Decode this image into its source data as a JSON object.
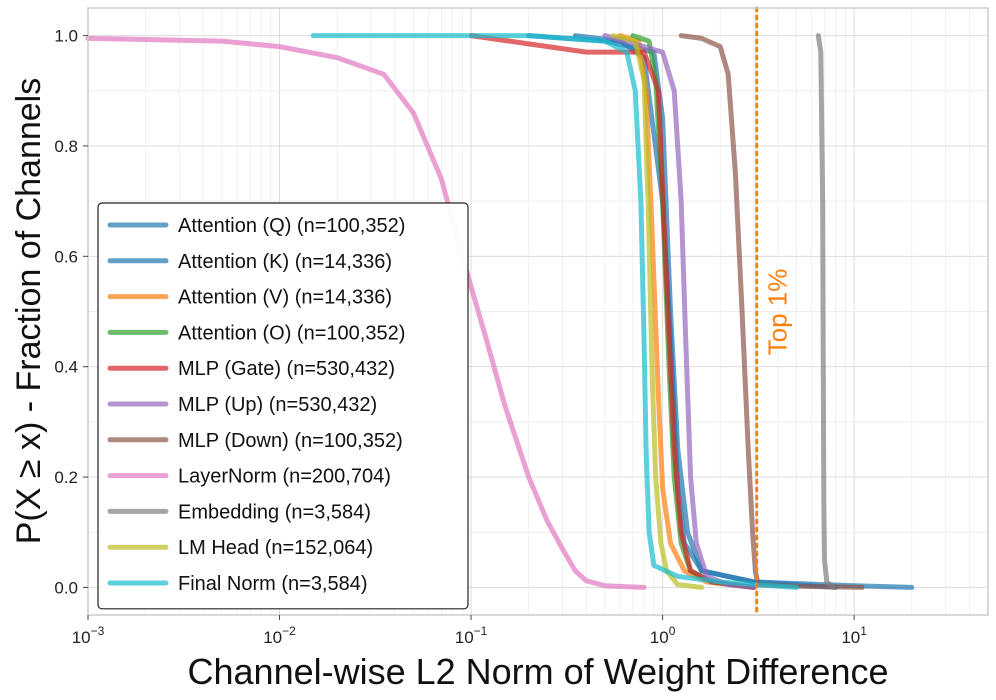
{
  "chart_data": {
    "type": "line",
    "subtype": "complementary-cdf",
    "xscale": "log",
    "xlim": [
      0.001,
      50
    ],
    "ylim": [
      -0.05,
      1.05
    ],
    "x_ticks": [
      {
        "value": 0.001,
        "base": "10",
        "exp": "−3"
      },
      {
        "value": 0.01,
        "base": "10",
        "exp": "−2"
      },
      {
        "value": 0.1,
        "base": "10",
        "exp": "−1"
      },
      {
        "value": 1,
        "base": "10",
        "exp": "0"
      },
      {
        "value": 10,
        "base": "10",
        "exp": "1"
      }
    ],
    "y_ticks": [
      {
        "value": 0.0,
        "label": "0.0"
      },
      {
        "value": 0.2,
        "label": "0.2"
      },
      {
        "value": 0.4,
        "label": "0.4"
      },
      {
        "value": 0.6,
        "label": "0.6"
      },
      {
        "value": 0.8,
        "label": "0.8"
      },
      {
        "value": 1.0,
        "label": "1.0"
      }
    ],
    "xlabel": "Channel-wise L2 Norm of Weight Difference",
    "ylabel": "P(X ≥ x) - Fraction of Channels",
    "grid": true,
    "legend_position": "lower-left",
    "annotation": {
      "text": "Top 1%",
      "x": 3.1,
      "color": "#ff7f0e"
    },
    "series": [
      {
        "name": "Attention (Q) (n=100,352)",
        "color": "#1f77b4",
        "points": [
          [
            0.35,
            1.0
          ],
          [
            0.6,
            0.99
          ],
          [
            0.8,
            0.96
          ],
          [
            1.0,
            0.7
          ],
          [
            1.1,
            0.45
          ],
          [
            1.2,
            0.18
          ],
          [
            1.3,
            0.08
          ],
          [
            1.6,
            0.03
          ],
          [
            3,
            0.01
          ],
          [
            10,
            0.003
          ],
          [
            20,
            0.0
          ]
        ]
      },
      {
        "name": "Attention (K) (n=14,336)",
        "color": "#1f77b4",
        "points": [
          [
            0.2,
            1.0
          ],
          [
            0.5,
            0.99
          ],
          [
            0.9,
            0.97
          ],
          [
            1.0,
            0.85
          ],
          [
            1.1,
            0.5
          ],
          [
            1.2,
            0.25
          ],
          [
            1.35,
            0.1
          ],
          [
            1.6,
            0.03
          ],
          [
            3,
            0.01
          ],
          [
            8,
            0.0
          ]
        ]
      },
      {
        "name": "Attention (V) (n=14,336)",
        "color": "#ff7f0e",
        "points": [
          [
            0.6,
            1.0
          ],
          [
            0.75,
            0.99
          ],
          [
            0.82,
            0.9
          ],
          [
            0.88,
            0.65
          ],
          [
            0.95,
            0.35
          ],
          [
            1.0,
            0.18
          ],
          [
            1.1,
            0.08
          ],
          [
            1.3,
            0.03
          ],
          [
            1.7,
            0.01
          ],
          [
            3,
            0.0
          ]
        ]
      },
      {
        "name": "Attention (O) (n=100,352)",
        "color": "#2ca02c",
        "points": [
          [
            0.7,
            1.0
          ],
          [
            0.85,
            0.99
          ],
          [
            0.92,
            0.92
          ],
          [
            1.0,
            0.7
          ],
          [
            1.08,
            0.4
          ],
          [
            1.15,
            0.2
          ],
          [
            1.25,
            0.08
          ],
          [
            1.4,
            0.03
          ],
          [
            1.8,
            0.01
          ],
          [
            3,
            0.0
          ]
        ]
      },
      {
        "name": "MLP (Gate) (n=530,432)",
        "color": "#d62728",
        "points": [
          [
            0.1,
            1.0
          ],
          [
            0.2,
            0.985
          ],
          [
            0.4,
            0.97
          ],
          [
            0.8,
            0.97
          ],
          [
            0.95,
            0.9
          ],
          [
            1.05,
            0.55
          ],
          [
            1.15,
            0.25
          ],
          [
            1.25,
            0.1
          ],
          [
            1.4,
            0.03
          ],
          [
            1.8,
            0.01
          ],
          [
            3,
            0.0
          ]
        ]
      },
      {
        "name": "MLP (Up) (n=530,432)",
        "color": "#9467bd",
        "points": [
          [
            0.5,
            1.0
          ],
          [
            0.8,
            0.98
          ],
          [
            1.0,
            0.97
          ],
          [
            1.15,
            0.9
          ],
          [
            1.25,
            0.7
          ],
          [
            1.32,
            0.45
          ],
          [
            1.4,
            0.2
          ],
          [
            1.5,
            0.08
          ],
          [
            1.7,
            0.02
          ],
          [
            2.2,
            0.005
          ],
          [
            3,
            0.0
          ]
        ]
      },
      {
        "name": "MLP (Down) (n=100,352)",
        "color": "#8c564b",
        "points": [
          [
            1.25,
            1.0
          ],
          [
            1.6,
            0.995
          ],
          [
            2.0,
            0.98
          ],
          [
            2.2,
            0.93
          ],
          [
            2.4,
            0.75
          ],
          [
            2.6,
            0.5
          ],
          [
            2.8,
            0.25
          ],
          [
            2.95,
            0.1
          ],
          [
            3.05,
            0.03
          ],
          [
            3.15,
            0.005
          ],
          [
            5,
            0.002
          ],
          [
            11,
            0.0
          ]
        ]
      },
      {
        "name": "LayerNorm (n=200,704)",
        "color": "#e377c2",
        "points": [
          [
            0.001,
            0.995
          ],
          [
            0.005,
            0.99
          ],
          [
            0.01,
            0.98
          ],
          [
            0.02,
            0.96
          ],
          [
            0.035,
            0.93
          ],
          [
            0.05,
            0.86
          ],
          [
            0.07,
            0.74
          ],
          [
            0.09,
            0.6
          ],
          [
            0.12,
            0.45
          ],
          [
            0.15,
            0.33
          ],
          [
            0.2,
            0.2
          ],
          [
            0.25,
            0.12
          ],
          [
            0.3,
            0.07
          ],
          [
            0.35,
            0.03
          ],
          [
            0.4,
            0.012
          ],
          [
            0.5,
            0.003
          ],
          [
            0.8,
            0.0
          ]
        ]
      },
      {
        "name": "Embedding (n=3,584)",
        "color": "#7f7f7f",
        "points": [
          [
            6.5,
            1.0
          ],
          [
            6.7,
            0.97
          ],
          [
            6.85,
            0.7
          ],
          [
            6.9,
            0.4
          ],
          [
            6.95,
            0.15
          ],
          [
            7.0,
            0.05
          ],
          [
            7.2,
            0.01
          ],
          [
            7.8,
            0.0
          ]
        ]
      },
      {
        "name": "LM Head (n=152,064)",
        "color": "#bcbd22",
        "points": [
          [
            0.55,
            1.0
          ],
          [
            0.72,
            0.99
          ],
          [
            0.8,
            0.92
          ],
          [
            0.84,
            0.7
          ],
          [
            0.88,
            0.4
          ],
          [
            0.92,
            0.2
          ],
          [
            0.98,
            0.08
          ],
          [
            1.05,
            0.03
          ],
          [
            1.2,
            0.005
          ],
          [
            1.6,
            0.0
          ]
        ]
      },
      {
        "name": "Final Norm (n=3,584)",
        "color": "#17becf",
        "points": [
          [
            0.015,
            1.0
          ],
          [
            0.2,
            1.0
          ],
          [
            0.5,
            0.99
          ],
          [
            0.65,
            0.97
          ],
          [
            0.72,
            0.9
          ],
          [
            0.77,
            0.7
          ],
          [
            0.8,
            0.45
          ],
          [
            0.82,
            0.25
          ],
          [
            0.85,
            0.1
          ],
          [
            0.9,
            0.04
          ],
          [
            1.2,
            0.02
          ],
          [
            2.0,
            0.01
          ],
          [
            3.0,
            0.005
          ],
          [
            5.0,
            0.0
          ]
        ]
      }
    ]
  }
}
